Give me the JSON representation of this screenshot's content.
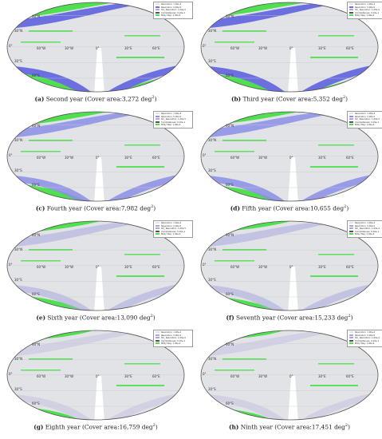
{
  "legend": {
    "items": [
      "Resolution: 1.00e-4",
      "Resolution: 5.00e-5",
      "SD_ Resolution: 1.00e-5",
      "Completeness: 9.10e-1",
      "Milky Way: 1.00e-4"
    ]
  },
  "axes": {
    "dec_labels": [
      "60°N",
      "30°N",
      "0°",
      "30°S",
      "60°S"
    ],
    "ra_labels": [
      "60°W",
      "30°W",
      "0°",
      "30°E",
      "60°E"
    ]
  },
  "panels": [
    {
      "tag": "(a)",
      "text": " Second year (Cover area:3,272 deg",
      "sup": "2",
      "close": ")",
      "blue": "heavy",
      "year": 2
    },
    {
      "tag": "(b)",
      "text": " Third year (Cover area:5,352 deg",
      "sup": "2",
      "close": ")",
      "blue": "heavy",
      "year": 3
    },
    {
      "tag": "(c)",
      "text": " Fourth year (Cover area:7,982 deg",
      "sup": "2",
      "close": ")",
      "blue": "medium",
      "year": 4
    },
    {
      "tag": "(d)",
      "text": " Fifth year (Cover area:10,655 deg",
      "sup": "2",
      "close": ")",
      "blue": "medium",
      "year": 5
    },
    {
      "tag": "(e)",
      "text": " Sixth year (Cover area:13,090 deg",
      "sup": "2",
      "close": ")",
      "blue": "light",
      "year": 6
    },
    {
      "tag": "(f)",
      "text": " Seventh year (Cover area:15,233 deg",
      "sup": "2",
      "close": ")",
      "blue": "light",
      "year": 7
    },
    {
      "tag": "(g)",
      "text": " Eighth year (Cover area:16,759 deg",
      "sup": "2",
      "close": ")",
      "blue": "faint",
      "year": 8
    },
    {
      "tag": "(h)",
      "text": " Ninth year (Cover area:17,451 deg",
      "sup": "2",
      "close": ")",
      "blue": "faint",
      "year": 9
    }
  ],
  "colors": {
    "green": "#4fdf4f",
    "blue_heavy": "#6b6fe0",
    "blue_medium": "#8b8fe6",
    "blue_light": "#a8aadf",
    "gray_sky": "#e2e3e6",
    "outline": "#555555"
  }
}
